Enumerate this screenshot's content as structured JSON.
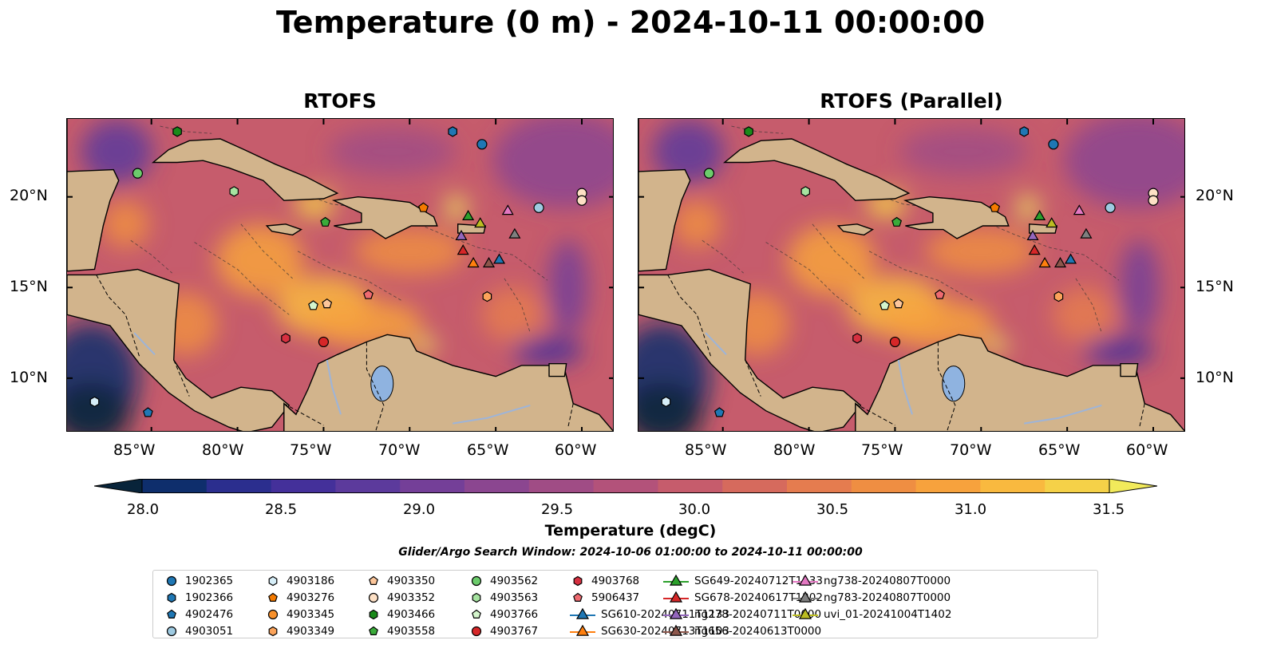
{
  "title": "Temperature (0 m) - 2024-10-11 00:00:00",
  "panels": [
    {
      "title": "RTOFS"
    },
    {
      "title": "RTOFS (Parallel)"
    }
  ],
  "axes": {
    "lon_labels": [
      "85°W",
      "80°W",
      "75°W",
      "70°W",
      "65°W",
      "60°W"
    ],
    "lat_labels": [
      "20°N",
      "15°N",
      "10°N"
    ]
  },
  "colorbar": {
    "label": "Temperature (degC)",
    "ticks": [
      "28.0",
      "28.5",
      "29.0",
      "29.5",
      "30.0",
      "30.5",
      "31.0",
      "31.5"
    ],
    "colors": [
      "#08243a",
      "#0e2e6c",
      "#2b2e8e",
      "#44309a",
      "#5c3a9c",
      "#743f98",
      "#8b4690",
      "#a04c85",
      "#b3527a",
      "#c65c6c",
      "#d66a5d",
      "#e57c4f",
      "#ef8e42",
      "#f7a23d",
      "#f9b93f",
      "#f5d148",
      "#f2ea5b"
    ]
  },
  "search_window": "Glider/Argo Search Window: 2024-10-06 01:00:00 to 2024-10-11 00:00:00",
  "legend": {
    "columns": [
      [
        {
          "label": "1902365",
          "shape": "circle",
          "color": "#1f77b4"
        },
        {
          "label": "1902366",
          "shape": "hexagon",
          "color": "#1f77b4"
        },
        {
          "label": "4902476",
          "shape": "pentagon",
          "color": "#1f77b4"
        },
        {
          "label": "4903051",
          "shape": "circle",
          "color": "#9ecae1"
        }
      ],
      [
        {
          "label": "4903186",
          "shape": "hexagon",
          "color": "#d6eef8"
        },
        {
          "label": "4903276",
          "shape": "pentagon",
          "color": "#f47a00"
        },
        {
          "label": "4903345",
          "shape": "circle",
          "color": "#f8902a"
        },
        {
          "label": "4903349",
          "shape": "hexagon",
          "color": "#fba35a"
        }
      ],
      [
        {
          "label": "4903350",
          "shape": "pentagon",
          "color": "#fcc69a"
        },
        {
          "label": "4903352",
          "shape": "circle",
          "color": "#fde0c5"
        },
        {
          "label": "4903466",
          "shape": "hexagon",
          "color": "#1a8a1a"
        },
        {
          "label": "4903558",
          "shape": "pentagon",
          "color": "#3aab3a"
        }
      ],
      [
        {
          "label": "4903562",
          "shape": "circle",
          "color": "#6ccc6c"
        },
        {
          "label": "4903563",
          "shape": "hexagon",
          "color": "#a6e3a0"
        },
        {
          "label": "4903766",
          "shape": "pentagon",
          "color": "#d4f5cc"
        },
        {
          "label": "4903767",
          "shape": "circle",
          "color": "#d62728"
        }
      ],
      [
        {
          "label": "4903768",
          "shape": "hexagon",
          "color": "#d63040"
        },
        {
          "label": "5906437",
          "shape": "pentagon",
          "color": "#ee6a70"
        },
        {
          "label": "SG610-20240711T1133",
          "shape": "triangle-line",
          "color": "#1f77b4"
        },
        {
          "label": "SG630-20240713T1103",
          "shape": "triangle-line",
          "color": "#ff7f0e"
        }
      ],
      [
        {
          "label": "SG649-20240712T1133",
          "shape": "triangle-line",
          "color": "#2ca02c"
        },
        {
          "label": "SG678-20240617T1202",
          "shape": "triangle-line",
          "color": "#d62728"
        },
        {
          "label": "ng278-20240711T0000",
          "shape": "triangle-line",
          "color": "#9467bd"
        },
        {
          "label": "ng656-20240613T0000",
          "shape": "triangle-line",
          "color": "#8c564b"
        }
      ],
      [
        {
          "label": "ng738-20240807T0000",
          "shape": "triangle-line",
          "color": "#e377c2"
        },
        {
          "label": "ng783-20240807T0000",
          "shape": "triangle-line",
          "color": "#7f7f7f"
        },
        {
          "label": "uvi_01-20241004T1402",
          "shape": "triangle-line",
          "color": "#bcbd22"
        }
      ]
    ]
  },
  "markers": [
    {
      "lon": -83.5,
      "lat": 23.6,
      "shape": "hexagon",
      "color": "#1a8a1a"
    },
    {
      "lon": -85.8,
      "lat": 21.3,
      "shape": "circle",
      "color": "#6ccc6c"
    },
    {
      "lon": -80.2,
      "lat": 20.3,
      "shape": "hexagon",
      "color": "#a6e3a0"
    },
    {
      "lon": -67.5,
      "lat": 23.6,
      "shape": "hexagon",
      "color": "#1f77b4"
    },
    {
      "lon": -65.8,
      "lat": 22.9,
      "shape": "circle",
      "color": "#1f77b4"
    },
    {
      "lon": -60.0,
      "lat": 20.2,
      "shape": "circle",
      "color": "#fde0c5"
    },
    {
      "lon": -60.0,
      "lat": 19.8,
      "shape": "circle",
      "color": "#fde0c5"
    },
    {
      "lon": -62.5,
      "lat": 19.4,
      "shape": "circle",
      "color": "#9ecae1"
    },
    {
      "lon": -69.2,
      "lat": 19.4,
      "shape": "pentagon",
      "color": "#f47a00"
    },
    {
      "lon": -74.9,
      "lat": 18.6,
      "shape": "pentagon",
      "color": "#3aab3a"
    },
    {
      "lon": -66.6,
      "lat": 18.9,
      "shape": "triangle",
      "color": "#2ca02c"
    },
    {
      "lon": -65.9,
      "lat": 18.5,
      "shape": "triangle",
      "color": "#bcbd22"
    },
    {
      "lon": -64.3,
      "lat": 19.2,
      "shape": "triangle",
      "color": "#e377c2"
    },
    {
      "lon": -67.0,
      "lat": 17.8,
      "shape": "triangle",
      "color": "#9467bd"
    },
    {
      "lon": -63.9,
      "lat": 17.9,
      "shape": "triangle",
      "color": "#7f7f7f"
    },
    {
      "lon": -66.9,
      "lat": 17.0,
      "shape": "triangle",
      "color": "#d62728"
    },
    {
      "lon": -66.3,
      "lat": 16.3,
      "shape": "triangle",
      "color": "#ff7f0e"
    },
    {
      "lon": -65.4,
      "lat": 16.3,
      "shape": "triangle",
      "color": "#8c564b"
    },
    {
      "lon": -64.8,
      "lat": 16.5,
      "shape": "triangle",
      "color": "#1f77b4"
    },
    {
      "lon": -72.4,
      "lat": 14.6,
      "shape": "pentagon",
      "color": "#ee6a70"
    },
    {
      "lon": -75.6,
      "lat": 14.0,
      "shape": "pentagon",
      "color": "#d4f5cc"
    },
    {
      "lon": -74.8,
      "lat": 14.1,
      "shape": "pentagon",
      "color": "#fcc69a"
    },
    {
      "lon": -65.5,
      "lat": 14.5,
      "shape": "hexagon",
      "color": "#fba35a"
    },
    {
      "lon": -77.2,
      "lat": 12.2,
      "shape": "hexagon",
      "color": "#d63040"
    },
    {
      "lon": -75.0,
      "lat": 12.0,
      "shape": "circle",
      "color": "#d62728"
    },
    {
      "lon": -88.3,
      "lat": 8.7,
      "shape": "hexagon",
      "color": "#d6eef8"
    },
    {
      "lon": -85.2,
      "lat": 8.1,
      "shape": "pentagon",
      "color": "#1f77b4"
    }
  ]
}
